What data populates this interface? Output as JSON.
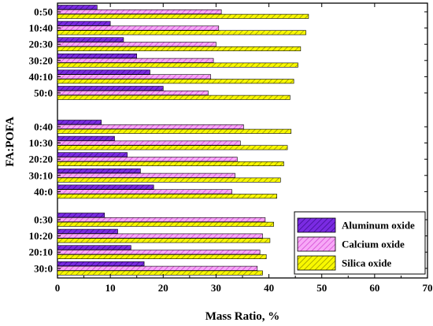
{
  "chart_data": {
    "type": "bar",
    "orientation": "horizontal",
    "xlabel": "Mass Ratio, %",
    "ylabel": "FA:POFA",
    "xlim": [
      0,
      70
    ],
    "xticks": [
      "0",
      "10",
      "20",
      "30",
      "40",
      "50",
      "60",
      "70"
    ],
    "grid": false,
    "legend_position": "bottom-right",
    "series": [
      {
        "name": "Aluminum oxide",
        "color": "#7a2be2",
        "hatch": "diagonal"
      },
      {
        "name": "Calcium oxide",
        "color": "#f07cf0",
        "hatch": "diagonal"
      },
      {
        "name": "Silica oxide",
        "color": "#f5f500",
        "hatch": "diagonal"
      }
    ],
    "groups": [
      {
        "categories": [
          "0:50",
          "10:40",
          "20:30",
          "30:20",
          "40:10",
          "50:0"
        ],
        "values": {
          "Aluminum oxide": [
            7.5,
            10,
            12.5,
            15,
            17.5,
            20
          ],
          "Calcium oxide": [
            31,
            30.5,
            30,
            29.5,
            29,
            28.5
          ],
          "Silica oxide": [
            47.5,
            47,
            46,
            45.5,
            44.7,
            44
          ]
        }
      },
      {
        "categories": [
          "0:40",
          "10:30",
          "20:20",
          "30:10",
          "40:0"
        ],
        "values": {
          "Aluminum oxide": [
            8.3,
            10.8,
            13.2,
            15.7,
            18.2
          ],
          "Calcium oxide": [
            35.2,
            34.6,
            34,
            33.6,
            33
          ],
          "Silica oxide": [
            44.2,
            43.5,
            42.8,
            42.2,
            41.5
          ]
        }
      },
      {
        "categories": [
          "0:30",
          "10:20",
          "20:10",
          "30:0"
        ],
        "values": {
          "Aluminum oxide": [
            8.9,
            11.4,
            13.9,
            16.4
          ],
          "Calcium oxide": [
            39.3,
            38.8,
            38.3,
            37.8
          ],
          "Silica oxide": [
            40.9,
            40.2,
            39.5,
            38.8
          ]
        }
      }
    ]
  }
}
